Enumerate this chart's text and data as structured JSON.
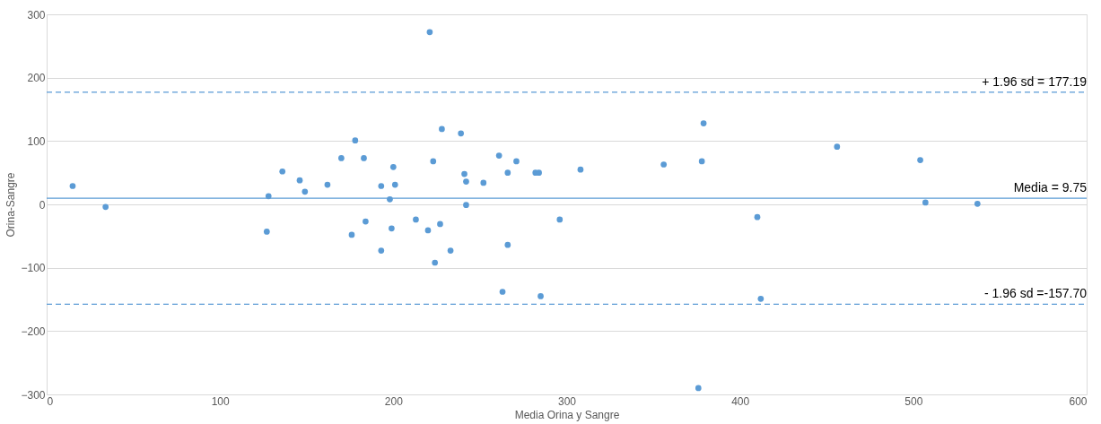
{
  "chart_data": {
    "type": "scatter",
    "xlabel": "Media Orina y Sangre",
    "ylabel": "Orina-Sangre",
    "xlim": [
      0,
      600
    ],
    "xticks": [
      0,
      100,
      200,
      300,
      400,
      500,
      600
    ],
    "ylim": [
      -300,
      300
    ],
    "yticks": [
      -300,
      -200,
      -100,
      0,
      100,
      200,
      300
    ],
    "grid": "y",
    "marker": "circle",
    "legend": false,
    "series": [
      {
        "color": "#5b9bd5",
        "x": [
          15,
          34,
          128,
          127,
          136,
          146,
          149,
          162,
          170,
          178,
          183,
          176,
          184,
          193,
          193,
          221,
          228,
          239,
          223,
          200,
          201,
          198,
          199,
          213,
          220,
          227,
          224,
          233,
          241,
          242,
          242,
          252,
          261,
          266,
          271,
          266,
          263,
          282,
          284,
          285,
          296,
          308,
          379,
          356,
          378,
          456,
          504,
          507,
          537,
          410,
          412,
          376
        ],
        "values": [
          29,
          -4,
          13,
          -43,
          52,
          38,
          20,
          31,
          73,
          101,
          73,
          -48,
          -27,
          29,
          -73,
          272,
          119,
          112,
          68,
          59,
          31,
          8,
          -38,
          -24,
          -41,
          -31,
          -92,
          -73,
          48,
          36,
          -1,
          34,
          77,
          50,
          68,
          -64,
          -138,
          50,
          50,
          -145,
          -24,
          55,
          128,
          63,
          68,
          91,
          70,
          3,
          1,
          -20,
          -149,
          -290
        ]
      }
    ],
    "ref_lines": [
      {
        "axis": "y",
        "value": 177.19,
        "label": "+ 1.96 sd = 177.19",
        "color": "#5b9bd5",
        "line_style": "dashed"
      },
      {
        "axis": "y",
        "value": 9.75,
        "label": "Media = 9.75",
        "color": "#5b9bd5",
        "line_style": "solid"
      },
      {
        "axis": "y",
        "value": -157.7,
        "label": "- 1.96 sd =-157.70",
        "color": "#5b9bd5",
        "line_style": "dashed"
      }
    ]
  }
}
